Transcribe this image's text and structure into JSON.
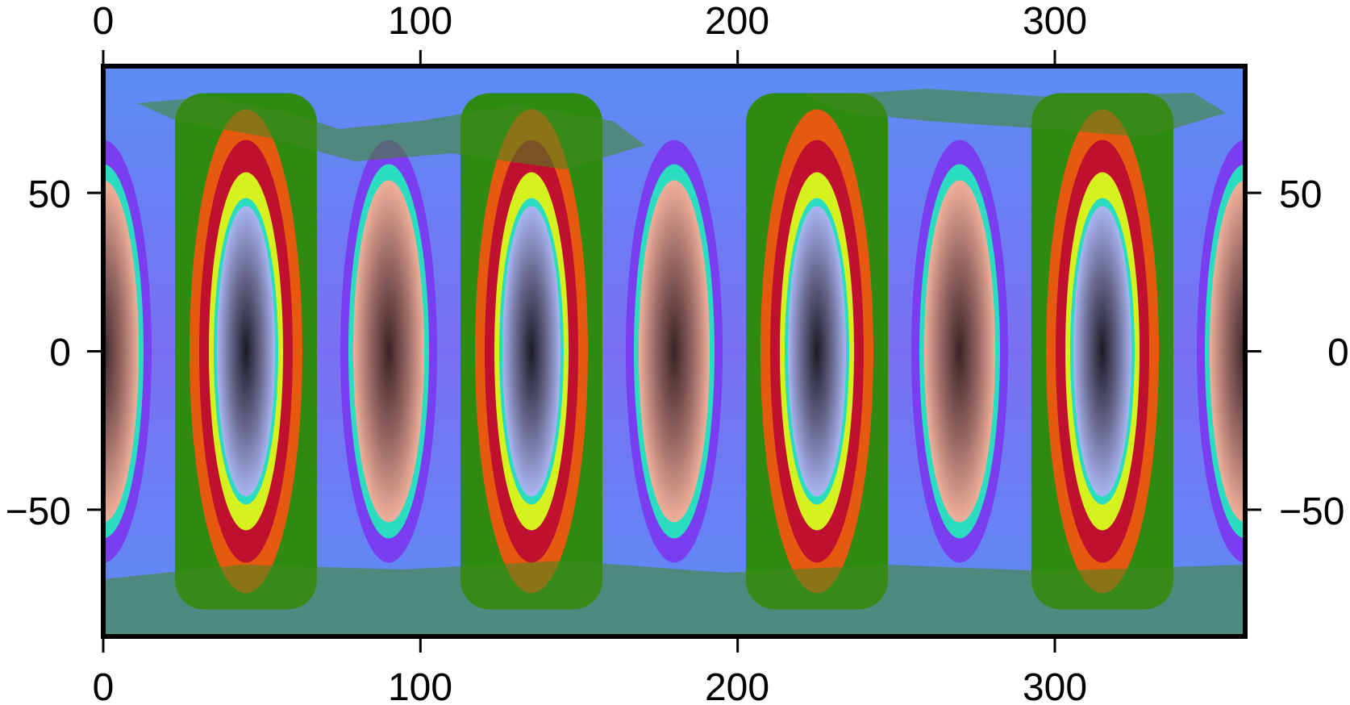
{
  "map": {
    "projection": "equirectangular",
    "x_ticks": [
      {
        "value": 0,
        "label": "0"
      },
      {
        "value": 100,
        "label": "100"
      },
      {
        "value": 200,
        "label": "200"
      },
      {
        "value": 300,
        "label": "300"
      }
    ],
    "y_ticks": [
      {
        "value": 50,
        "label": "50"
      },
      {
        "value": 0,
        "label": "0"
      },
      {
        "value": -50,
        "label": "−50"
      }
    ],
    "x_range": [
      0,
      360
    ],
    "y_range": [
      -90,
      90
    ],
    "lobe_centers_lon": [
      0,
      45,
      90,
      135,
      180,
      225,
      270,
      315,
      360
    ],
    "lobe_kind": [
      "light",
      "dark",
      "light",
      "dark",
      "light",
      "dark",
      "light",
      "dark",
      "light"
    ],
    "colors": {
      "background": "#5b8ef5",
      "ring_green": "#2f8a12",
      "ring_orange": "#e65a10",
      "ring_red": "#c01030",
      "ring_yellow": "#d6f21e",
      "ring_cyan": "#2adcc0",
      "ring_violet": "#7a3df0",
      "core_peach": "#efb09a",
      "core_brown": "#3a2426",
      "core_lavender": "#a9b6f2",
      "core_dark": "#1d1a26",
      "land": "#3f8a1e",
      "frame": "#000000"
    }
  }
}
